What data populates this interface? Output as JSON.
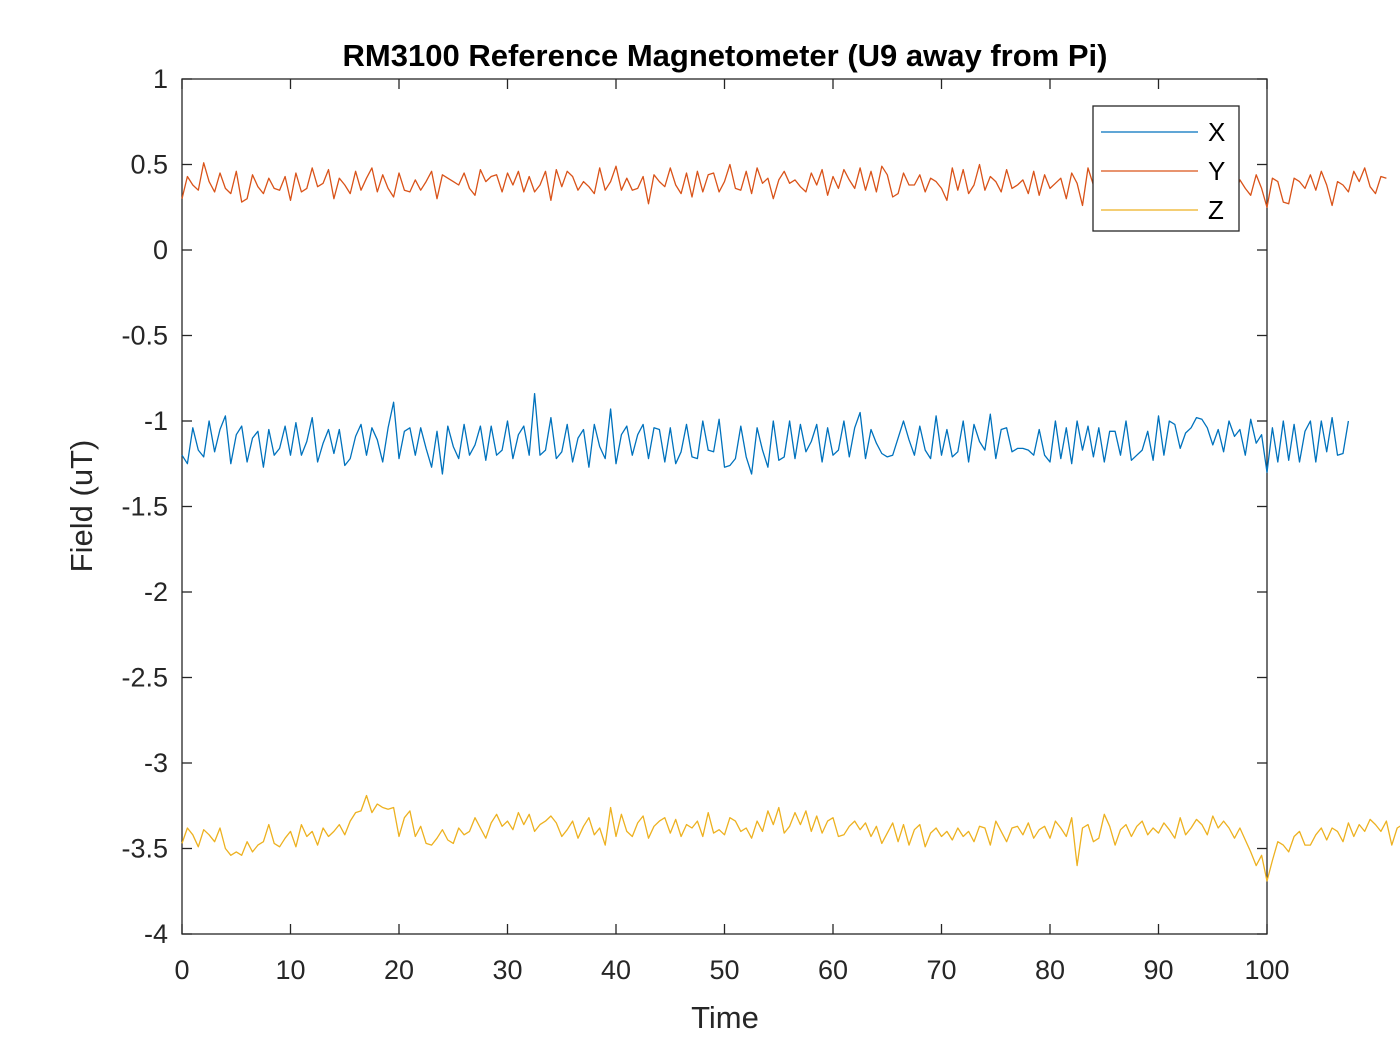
{
  "chart_data": {
    "type": "line",
    "title": "RM3100 Reference Magnetometer (U9 away from Pi)",
    "xlabel": "Time",
    "ylabel": "Field (uT)",
    "xlim": [
      0,
      100
    ],
    "ylim": [
      -4,
      1
    ],
    "xticks": [
      0,
      10,
      20,
      30,
      40,
      50,
      60,
      70,
      80,
      90,
      100
    ],
    "yticks": [
      1,
      0.5,
      0,
      -0.5,
      -1,
      -1.5,
      -2,
      -2.5,
      -3,
      -3.5,
      -4
    ],
    "grid": false,
    "legend_position": "top-right",
    "sample_interval": 0.5,
    "series": [
      {
        "name": "X",
        "color": "#0072BD",
        "values": [
          -1.2,
          -1.25,
          -1.04,
          -1.17,
          -1.21,
          -1.0,
          -1.18,
          -1.05,
          -0.97,
          -1.25,
          -1.08,
          -1.03,
          -1.24,
          -1.1,
          -1.06,
          -1.27,
          -1.05,
          -1.2,
          -1.16,
          -1.03,
          -1.2,
          -1.01,
          -1.2,
          -1.12,
          -0.98,
          -1.24,
          -1.13,
          -1.05,
          -1.19,
          -1.05,
          -1.26,
          -1.22,
          -1.09,
          -1.02,
          -1.2,
          -1.04,
          -1.11,
          -1.24,
          -1.04,
          -0.89,
          -1.22,
          -1.06,
          -1.04,
          -1.2,
          -1.04,
          -1.16,
          -1.27,
          -1.06,
          -1.31,
          -1.03,
          -1.15,
          -1.22,
          -1.02,
          -1.2,
          -1.14,
          -1.03,
          -1.23,
          -1.03,
          -1.2,
          -1.17,
          -1.0,
          -1.22,
          -1.08,
          -1.03,
          -1.2,
          -0.84,
          -1.2,
          -1.17,
          -0.98,
          -1.22,
          -1.18,
          -1.02,
          -1.24,
          -1.1,
          -1.05,
          -1.27,
          -1.02,
          -1.15,
          -1.22,
          -0.93,
          -1.25,
          -1.08,
          -1.03,
          -1.2,
          -1.08,
          -1.02,
          -1.22,
          -1.04,
          -1.05,
          -1.24,
          -1.04,
          -1.25,
          -1.18,
          -1.02,
          -1.21,
          -1.22,
          -1.0,
          -1.17,
          -1.18,
          -0.99,
          -1.27,
          -1.26,
          -1.22,
          -1.03,
          -1.21,
          -1.31,
          -1.04,
          -1.17,
          -1.27,
          -1.0,
          -1.23,
          -1.21,
          -1.0,
          -1.22,
          -1.02,
          -1.18,
          -1.12,
          -1.02,
          -1.24,
          -1.04,
          -1.2,
          -1.17,
          -1.0,
          -1.21,
          -1.04,
          -0.95,
          -1.22,
          -1.05,
          -1.13,
          -1.19,
          -1.21,
          -1.2,
          -1.1,
          -1.0,
          -1.11,
          -1.2,
          -1.03,
          -1.17,
          -1.22,
          -0.97,
          -1.2,
          -1.05,
          -1.21,
          -1.18,
          -1.0,
          -1.24,
          -1.02,
          -1.12,
          -1.17,
          -0.96,
          -1.22,
          -1.05,
          -1.04,
          -1.18,
          -1.16,
          -1.16,
          -1.17,
          -1.2,
          -1.05,
          -1.2,
          -1.24,
          -1.0,
          -1.22,
          -1.04,
          -1.25,
          -1.0,
          -1.17,
          -1.03,
          -1.21,
          -1.04,
          -1.24,
          -1.06,
          -1.06,
          -1.2,
          -1.0,
          -1.23,
          -1.2,
          -1.17,
          -1.06,
          -1.23,
          -0.97,
          -1.2,
          -1.0,
          -1.02,
          -1.16,
          -1.07,
          -1.04,
          -0.98,
          -0.99,
          -1.04,
          -1.14,
          -1.05,
          -1.18,
          -1.0,
          -1.09,
          -1.05,
          -1.2,
          -0.99,
          -1.13,
          -1.08,
          -1.3,
          -1.04,
          -1.24,
          -1.0,
          -1.23,
          -1.02,
          -1.24,
          -1.06,
          -1.0,
          -1.24,
          -1.0,
          -1.18,
          -0.98,
          -1.2,
          -1.19,
          -1.0
        ]
      },
      {
        "name": "Y",
        "color": "#D95319",
        "values": [
          0.3,
          0.43,
          0.38,
          0.35,
          0.51,
          0.4,
          0.34,
          0.45,
          0.36,
          0.33,
          0.46,
          0.28,
          0.3,
          0.44,
          0.37,
          0.33,
          0.42,
          0.36,
          0.35,
          0.43,
          0.29,
          0.45,
          0.34,
          0.36,
          0.48,
          0.37,
          0.39,
          0.47,
          0.3,
          0.42,
          0.38,
          0.33,
          0.46,
          0.35,
          0.42,
          0.48,
          0.34,
          0.44,
          0.36,
          0.31,
          0.45,
          0.35,
          0.34,
          0.41,
          0.35,
          0.4,
          0.46,
          0.3,
          0.44,
          0.42,
          0.4,
          0.38,
          0.45,
          0.36,
          0.32,
          0.47,
          0.4,
          0.43,
          0.44,
          0.34,
          0.45,
          0.38,
          0.46,
          0.34,
          0.43,
          0.34,
          0.38,
          0.46,
          0.29,
          0.47,
          0.37,
          0.46,
          0.43,
          0.35,
          0.4,
          0.37,
          0.33,
          0.48,
          0.35,
          0.4,
          0.49,
          0.35,
          0.42,
          0.35,
          0.36,
          0.43,
          0.27,
          0.44,
          0.4,
          0.37,
          0.48,
          0.38,
          0.33,
          0.45,
          0.31,
          0.46,
          0.34,
          0.44,
          0.45,
          0.34,
          0.4,
          0.5,
          0.36,
          0.35,
          0.46,
          0.33,
          0.48,
          0.39,
          0.42,
          0.3,
          0.41,
          0.46,
          0.39,
          0.41,
          0.37,
          0.34,
          0.45,
          0.38,
          0.47,
          0.32,
          0.43,
          0.36,
          0.47,
          0.41,
          0.36,
          0.48,
          0.35,
          0.46,
          0.34,
          0.49,
          0.44,
          0.31,
          0.33,
          0.45,
          0.38,
          0.38,
          0.44,
          0.34,
          0.42,
          0.4,
          0.36,
          0.29,
          0.48,
          0.35,
          0.47,
          0.33,
          0.38,
          0.5,
          0.35,
          0.43,
          0.4,
          0.34,
          0.47,
          0.36,
          0.38,
          0.41,
          0.33,
          0.46,
          0.32,
          0.44,
          0.36,
          0.39,
          0.42,
          0.3,
          0.45,
          0.39,
          0.26,
          0.48,
          0.38,
          0.3,
          0.46,
          0.35,
          0.26,
          0.44,
          0.32,
          0.4,
          0.23,
          0.48,
          0.38,
          0.45,
          0.36,
          0.32,
          0.44,
          0.36,
          0.41,
          0.34,
          0.46,
          0.37,
          0.31,
          0.44,
          0.38,
          0.35,
          0.46,
          0.38,
          0.32,
          0.41,
          0.36,
          0.32,
          0.44,
          0.36,
          0.25,
          0.42,
          0.4,
          0.28,
          0.27,
          0.42,
          0.4,
          0.36,
          0.44,
          0.35,
          0.46,
          0.38,
          0.26,
          0.4,
          0.38,
          0.34,
          0.46,
          0.4,
          0.48,
          0.37,
          0.33,
          0.43,
          0.42
        ]
      },
      {
        "name": "Z",
        "color": "#EDB120",
        "values": [
          -3.47,
          -3.38,
          -3.42,
          -3.49,
          -3.39,
          -3.42,
          -3.46,
          -3.38,
          -3.5,
          -3.54,
          -3.52,
          -3.54,
          -3.46,
          -3.52,
          -3.48,
          -3.46,
          -3.36,
          -3.47,
          -3.49,
          -3.44,
          -3.4,
          -3.49,
          -3.36,
          -3.43,
          -3.4,
          -3.48,
          -3.38,
          -3.43,
          -3.4,
          -3.36,
          -3.42,
          -3.34,
          -3.29,
          -3.28,
          -3.19,
          -3.29,
          -3.24,
          -3.26,
          -3.27,
          -3.26,
          -3.43,
          -3.32,
          -3.28,
          -3.43,
          -3.37,
          -3.47,
          -3.48,
          -3.44,
          -3.39,
          -3.45,
          -3.47,
          -3.38,
          -3.42,
          -3.4,
          -3.32,
          -3.38,
          -3.44,
          -3.35,
          -3.3,
          -3.37,
          -3.34,
          -3.39,
          -3.29,
          -3.36,
          -3.3,
          -3.4,
          -3.36,
          -3.34,
          -3.31,
          -3.35,
          -3.43,
          -3.39,
          -3.34,
          -3.44,
          -3.37,
          -3.32,
          -3.42,
          -3.38,
          -3.48,
          -3.26,
          -3.43,
          -3.3,
          -3.4,
          -3.43,
          -3.35,
          -3.31,
          -3.44,
          -3.37,
          -3.34,
          -3.32,
          -3.41,
          -3.33,
          -3.43,
          -3.36,
          -3.38,
          -3.34,
          -3.43,
          -3.29,
          -3.41,
          -3.39,
          -3.42,
          -3.32,
          -3.34,
          -3.4,
          -3.38,
          -3.44,
          -3.34,
          -3.4,
          -3.28,
          -3.36,
          -3.26,
          -3.41,
          -3.37,
          -3.29,
          -3.36,
          -3.28,
          -3.4,
          -3.31,
          -3.41,
          -3.34,
          -3.32,
          -3.43,
          -3.42,
          -3.37,
          -3.34,
          -3.39,
          -3.35,
          -3.43,
          -3.37,
          -3.47,
          -3.41,
          -3.35,
          -3.46,
          -3.36,
          -3.48,
          -3.39,
          -3.36,
          -3.49,
          -3.41,
          -3.38,
          -3.43,
          -3.4,
          -3.45,
          -3.38,
          -3.43,
          -3.4,
          -3.46,
          -3.37,
          -3.38,
          -3.48,
          -3.34,
          -3.4,
          -3.46,
          -3.38,
          -3.37,
          -3.42,
          -3.35,
          -3.44,
          -3.39,
          -3.37,
          -3.44,
          -3.34,
          -3.38,
          -3.43,
          -3.32,
          -3.6,
          -3.38,
          -3.36,
          -3.46,
          -3.44,
          -3.3,
          -3.37,
          -3.48,
          -3.39,
          -3.36,
          -3.43,
          -3.37,
          -3.34,
          -3.42,
          -3.38,
          -3.41,
          -3.35,
          -3.39,
          -3.44,
          -3.32,
          -3.42,
          -3.38,
          -3.33,
          -3.36,
          -3.42,
          -3.31,
          -3.38,
          -3.34,
          -3.38,
          -3.44,
          -3.38,
          -3.45,
          -3.52,
          -3.6,
          -3.54,
          -3.69,
          -3.57,
          -3.46,
          -3.48,
          -3.52,
          -3.43,
          -3.4,
          -3.48,
          -3.48,
          -3.42,
          -3.38,
          -3.45,
          -3.38,
          -3.4,
          -3.46,
          -3.35,
          -3.43,
          -3.36,
          -3.4,
          -3.33,
          -3.36,
          -3.4,
          -3.34,
          -3.48,
          -3.38,
          -3.36,
          -3.34,
          -3.33,
          -3.26,
          -3.32
        ]
      }
    ]
  }
}
